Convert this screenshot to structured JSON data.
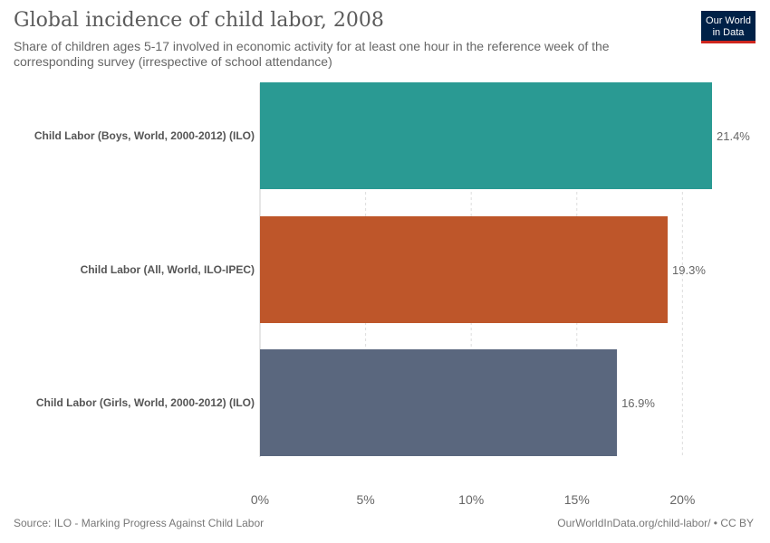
{
  "header": {
    "title": "Global incidence of child labor, 2008",
    "subtitle": "Share of children ages 5-17 involved in economic activity for at least one hour in the reference week of the corresponding survey (irrespective of school attendance)",
    "logo_line1": "Our World",
    "logo_line2": "in Data",
    "logo_colors": {
      "background": "#002147",
      "accent": "#ce261e"
    }
  },
  "footer": {
    "source": "Source: ILO - Marking Progress Against Child Labor",
    "attribution": "OurWorldInData.org/child-labor/ • CC BY"
  },
  "chart_data": {
    "type": "bar",
    "orientation": "horizontal",
    "categories": [
      "Child Labor (Boys, World, 2000-2012) (ILO)",
      "Child Labor (All, World, ILO-IPEC)",
      "Child Labor (Girls, World, 2000-2012) (ILO)"
    ],
    "values": [
      21.4,
      19.3,
      16.9
    ],
    "value_labels": [
      "21.4%",
      "19.3%",
      "16.9%"
    ],
    "colors": [
      "#2a9a93",
      "#be562a",
      "#5a677e"
    ],
    "xlim": [
      0,
      21.4
    ],
    "xticks": [
      0,
      5,
      10,
      15,
      20
    ],
    "xtick_labels": [
      "0%",
      "5%",
      "10%",
      "15%",
      "20%"
    ],
    "grid": true
  }
}
